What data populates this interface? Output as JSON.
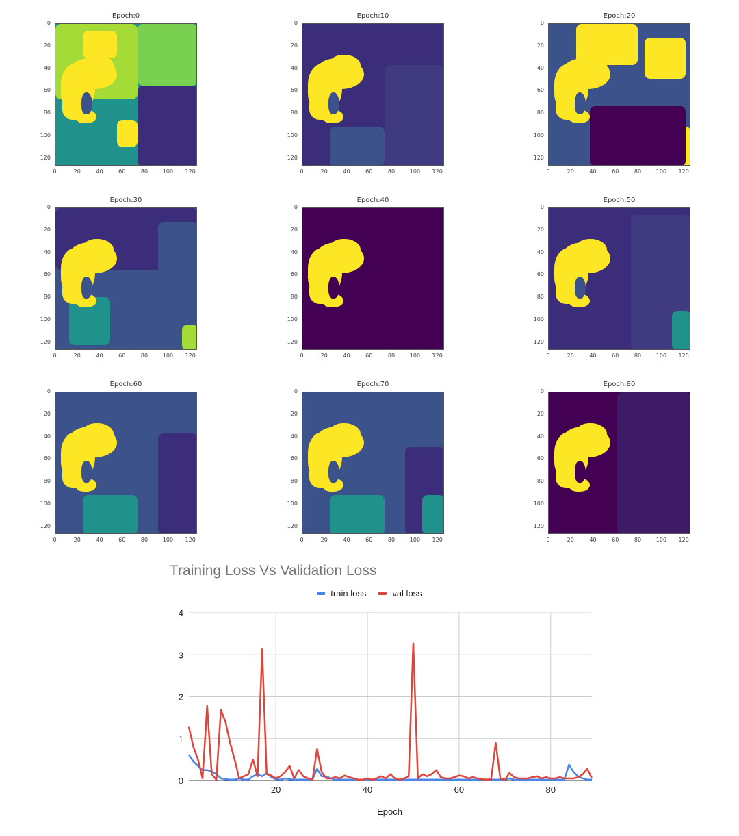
{
  "panels": [
    {
      "title": "Epoch:0"
    },
    {
      "title": "Epoch:10"
    },
    {
      "title": "Epoch:20"
    },
    {
      "title": "Epoch:30"
    },
    {
      "title": "Epoch:40"
    },
    {
      "title": "Epoch:50"
    },
    {
      "title": "Epoch:60"
    },
    {
      "title": "Epoch:70"
    },
    {
      "title": "Epoch:80"
    }
  ],
  "panel_ticks": {
    "x": [
      "0",
      "20",
      "40",
      "60",
      "80",
      "100",
      "120"
    ],
    "y": [
      "0",
      "20",
      "40",
      "60",
      "80",
      "100",
      "120"
    ]
  },
  "colors": {
    "train": "#4a86e8",
    "val": "#e0443a",
    "viridis_dark": "#440154",
    "viridis_indigo": "#3b2d7a",
    "viridis_blue": "#3b528b",
    "viridis_teal": "#21918c",
    "viridis_green": "#5ec962",
    "viridis_yellow": "#fde725"
  },
  "chart_data": [
    {
      "type": "heatmap",
      "panel_titles": [
        "Epoch:0",
        "Epoch:10",
        "Epoch:20",
        "Epoch:30",
        "Epoch:40",
        "Epoch:50",
        "Epoch:60",
        "Epoch:70",
        "Epoch:80"
      ],
      "xlim": [
        0,
        127
      ],
      "ylim": [
        127,
        0
      ],
      "colormap": "viridis"
    },
    {
      "type": "line",
      "title": "Training Loss Vs Validation Loss",
      "xlabel": "Epoch",
      "ylabel": "",
      "xlim": [
        1,
        89
      ],
      "ylim": [
        0,
        4
      ],
      "xticks": [
        20,
        40,
        60,
        80
      ],
      "yticks": [
        0,
        1,
        2,
        3,
        4
      ],
      "grid": true,
      "legend": "top-center",
      "x": [
        1,
        2,
        3,
        4,
        5,
        6,
        7,
        8,
        9,
        10,
        11,
        12,
        13,
        14,
        15,
        16,
        17,
        18,
        19,
        20,
        21,
        22,
        23,
        24,
        25,
        26,
        27,
        28,
        29,
        30,
        31,
        32,
        33,
        34,
        35,
        36,
        37,
        38,
        39,
        40,
        41,
        42,
        43,
        44,
        45,
        46,
        47,
        48,
        49,
        50,
        51,
        52,
        53,
        54,
        55,
        56,
        57,
        58,
        59,
        60,
        61,
        62,
        63,
        64,
        65,
        66,
        67,
        68,
        69,
        70,
        71,
        72,
        73,
        74,
        75,
        76,
        77,
        78,
        79,
        80,
        81,
        82,
        83,
        84,
        85,
        86,
        87,
        88,
        89
      ],
      "series": [
        {
          "name": "train loss",
          "values": [
            0.62,
            0.45,
            0.35,
            0.25,
            0.25,
            0.22,
            0.15,
            0.05,
            0.03,
            0.02,
            0.02,
            0.05,
            0.02,
            0.02,
            0.1,
            0.15,
            0.1,
            0.18,
            0.08,
            0.03,
            0.02,
            0.05,
            0.03,
            0.02,
            0.02,
            0.02,
            0.02,
            0.02,
            0.28,
            0.1,
            0.1,
            0.05,
            0.02,
            0.02,
            0.02,
            0.02,
            0.02,
            0.02,
            0.02,
            0.02,
            0.02,
            0.02,
            0.02,
            0.02,
            0.02,
            0.02,
            0.02,
            0.02,
            0.02,
            0.02,
            0.02,
            0.02,
            0.02,
            0.02,
            0.02,
            0.02,
            0.02,
            0.02,
            0.02,
            0.02,
            0.02,
            0.02,
            0.02,
            0.02,
            0.02,
            0.02,
            0.02,
            0.02,
            0.02,
            0.02,
            0.05,
            0.02,
            0.02,
            0.02,
            0.02,
            0.02,
            0.02,
            0.02,
            0.02,
            0.02,
            0.02,
            0.02,
            0.02,
            0.38,
            0.2,
            0.1,
            0.05,
            0.02,
            0.02
          ]
        },
        {
          "name": "val loss",
          "values": [
            1.28,
            0.8,
            0.5,
            0.05,
            1.78,
            0.15,
            0.02,
            1.68,
            1.4,
            0.9,
            0.5,
            0.05,
            0.1,
            0.15,
            0.5,
            0.1,
            3.13,
            0.15,
            0.12,
            0.05,
            0.1,
            0.2,
            0.35,
            0.05,
            0.25,
            0.1,
            0.05,
            0.02,
            0.75,
            0.2,
            0.05,
            0.05,
            0.08,
            0.05,
            0.12,
            0.08,
            0.05,
            0.02,
            0.02,
            0.05,
            0.02,
            0.05,
            0.1,
            0.05,
            0.15,
            0.05,
            0.02,
            0.05,
            0.1,
            3.27,
            0.05,
            0.15,
            0.1,
            0.15,
            0.25,
            0.08,
            0.05,
            0.05,
            0.08,
            0.12,
            0.1,
            0.05,
            0.08,
            0.05,
            0.03,
            0.02,
            0.03,
            0.9,
            0.05,
            0.02,
            0.18,
            0.08,
            0.05,
            0.05,
            0.05,
            0.08,
            0.1,
            0.05,
            0.08,
            0.05,
            0.05,
            0.08,
            0.05,
            0.05,
            0.05,
            0.08,
            0.15,
            0.28,
            0.05
          ]
        }
      ]
    }
  ]
}
